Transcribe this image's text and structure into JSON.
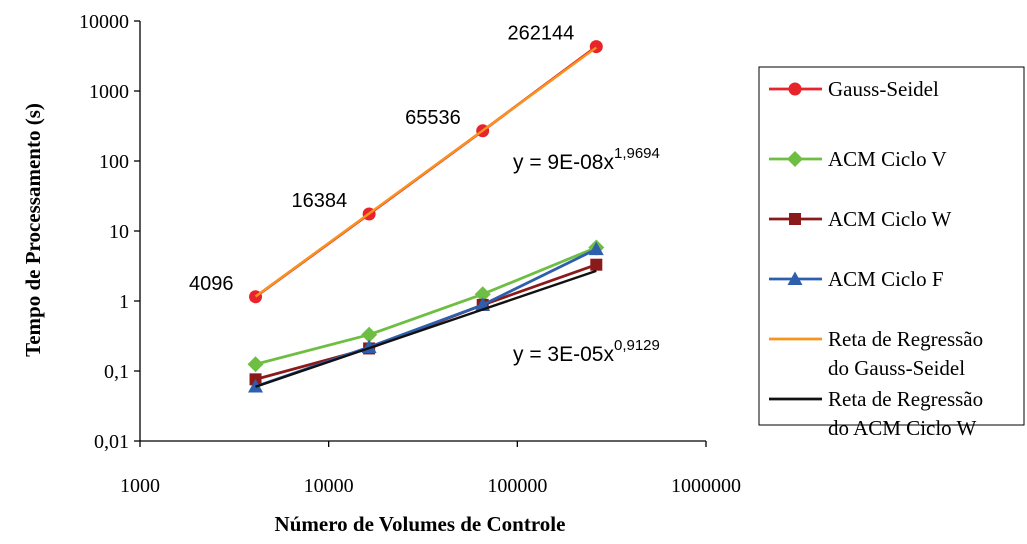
{
  "chart_data": {
    "type": "line",
    "xscale": "log",
    "yscale": "log",
    "xlim": [
      1000,
      1000000
    ],
    "ylim": [
      0.01,
      10000
    ],
    "xticks": [
      "1000",
      "10000",
      "100000",
      "1000000"
    ],
    "yticks": [
      "0,01",
      "0,1",
      "1",
      "10",
      "100",
      "1000",
      "10000"
    ],
    "xlabel": "Número de Volumes de Controle",
    "ylabel": "Tempo de Processamento (s)",
    "grid": false,
    "legend_position": "right",
    "x": [
      4096,
      16384,
      65536,
      262144
    ],
    "series": [
      {
        "name": "Gauss-Seidel",
        "marker": "circle",
        "color": "#e8242a",
        "values": [
          1.15,
          17.5,
          270,
          4300
        ]
      },
      {
        "name": "ACM Ciclo V",
        "marker": "diamond",
        "color": "#6fbe44",
        "values": [
          0.125,
          0.33,
          1.25,
          5.8
        ]
      },
      {
        "name": "ACM Ciclo W",
        "marker": "square",
        "color": "#8b1a1a",
        "values": [
          0.076,
          0.21,
          0.88,
          3.3
        ]
      },
      {
        "name": "ACM Ciclo F",
        "marker": "triangle",
        "color": "#2e5fae",
        "values": [
          0.06,
          0.22,
          0.88,
          5.5
        ]
      },
      {
        "name": "Reta de Regressão do Gauss-Seidel",
        "name_lines": [
          "Reta de Regressão",
          "do Gauss-Seidel"
        ],
        "marker": "none",
        "color": "#f7941d",
        "values": [
          1.16,
          17.8,
          272,
          4170
        ]
      },
      {
        "name": "Reta de Regressão do ACM Ciclo W",
        "name_lines": [
          "Reta de Regressão",
          "do ACM Ciclo W"
        ],
        "marker": "none",
        "color": "#111111",
        "values": [
          0.0595,
          0.212,
          0.756,
          2.696
        ]
      }
    ],
    "annotations": [
      {
        "text": "4096",
        "x": 4096,
        "y": 1.15
      },
      {
        "text": "16384",
        "x": 16384,
        "y": 17.5
      },
      {
        "text": "65536",
        "x": 65536,
        "y": 270
      },
      {
        "text": "262144",
        "x": 262144,
        "y": 4300
      }
    ],
    "equations": [
      {
        "base": "y = 9E-08x",
        "exponent": "1,9694"
      },
      {
        "base": "y = 3E-05x",
        "exponent": "0,9129"
      }
    ]
  }
}
